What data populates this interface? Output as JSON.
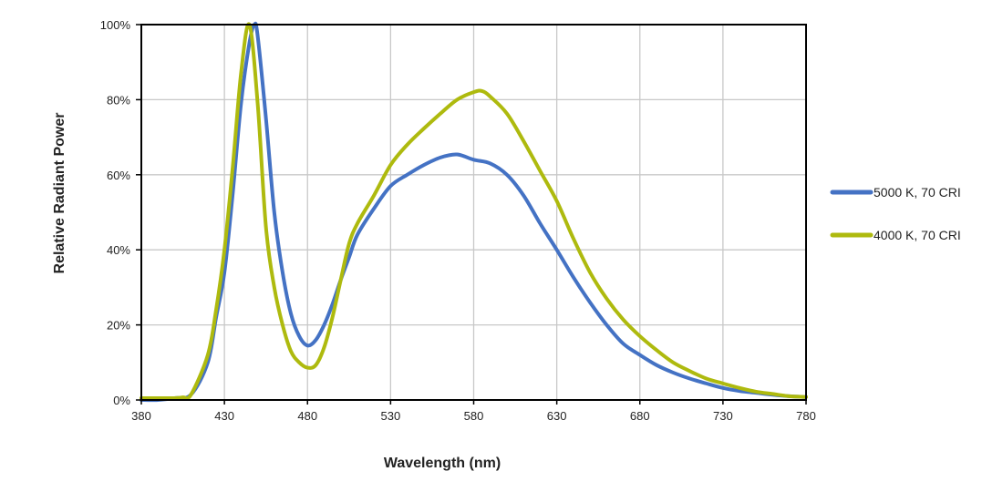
{
  "chart_data": {
    "type": "line",
    "title": "",
    "xlabel": "Wavelength (nm)",
    "ylabel": "Relative Radiant Power",
    "xlim": [
      380,
      780
    ],
    "ylim": [
      0,
      100
    ],
    "x_ticks": [
      "380",
      "430",
      "480",
      "530",
      "580",
      "630",
      "680",
      "730",
      "780"
    ],
    "y_ticks": [
      "0%",
      "20%",
      "40%",
      "60%",
      "80%",
      "100%"
    ],
    "grid": true,
    "legend_position": "right",
    "series": [
      {
        "name": "5000 K, 70 CRI",
        "color": "#4472C4",
        "points": [
          [
            380,
            0
          ],
          [
            390,
            0
          ],
          [
            400,
            0.5
          ],
          [
            410,
            1.5
          ],
          [
            420,
            10
          ],
          [
            425,
            22
          ],
          [
            430,
            34
          ],
          [
            435,
            55
          ],
          [
            440,
            79
          ],
          [
            445,
            95
          ],
          [
            448,
            100
          ],
          [
            450,
            97
          ],
          [
            455,
            75
          ],
          [
            460,
            50
          ],
          [
            465,
            34
          ],
          [
            470,
            23
          ],
          [
            475,
            17
          ],
          [
            480,
            14.5
          ],
          [
            485,
            16
          ],
          [
            490,
            20
          ],
          [
            495,
            25.5
          ],
          [
            500,
            32
          ],
          [
            505,
            38
          ],
          [
            510,
            44
          ],
          [
            520,
            51
          ],
          [
            530,
            57
          ],
          [
            540,
            60
          ],
          [
            550,
            62.6
          ],
          [
            560,
            64.6
          ],
          [
            570,
            65.4
          ],
          [
            580,
            64
          ],
          [
            590,
            63
          ],
          [
            600,
            60
          ],
          [
            610,
            54.5
          ],
          [
            620,
            47
          ],
          [
            630,
            40
          ],
          [
            640,
            32.7
          ],
          [
            650,
            26
          ],
          [
            660,
            20
          ],
          [
            670,
            15
          ],
          [
            680,
            12
          ],
          [
            690,
            9.3
          ],
          [
            700,
            7.3
          ],
          [
            710,
            5.7
          ],
          [
            720,
            4.4
          ],
          [
            730,
            3.2
          ],
          [
            740,
            2.4
          ],
          [
            750,
            1.9
          ],
          [
            760,
            1.4
          ],
          [
            770,
            1
          ],
          [
            780,
            0.8
          ]
        ]
      },
      {
        "name": "4000 K, 70 CRI",
        "color": "#AEBA0E",
        "points": [
          [
            380,
            0.5
          ],
          [
            390,
            0.5
          ],
          [
            400,
            0.5
          ],
          [
            405,
            0.7
          ],
          [
            410,
            1.5
          ],
          [
            420,
            12
          ],
          [
            425,
            24
          ],
          [
            430,
            40
          ],
          [
            435,
            62
          ],
          [
            440,
            87
          ],
          [
            445,
            100
          ],
          [
            450,
            79
          ],
          [
            455,
            46
          ],
          [
            460,
            30
          ],
          [
            465,
            20
          ],
          [
            470,
            13
          ],
          [
            475,
            10
          ],
          [
            480,
            8.6
          ],
          [
            485,
            9.3
          ],
          [
            490,
            14
          ],
          [
            495,
            22
          ],
          [
            500,
            32
          ],
          [
            505,
            41.6
          ],
          [
            510,
            47
          ],
          [
            520,
            54.5
          ],
          [
            530,
            62.6
          ],
          [
            540,
            68
          ],
          [
            550,
            72.3
          ],
          [
            560,
            76.3
          ],
          [
            570,
            80
          ],
          [
            580,
            82
          ],
          [
            585,
            82.3
          ],
          [
            590,
            80.8
          ],
          [
            600,
            76.3
          ],
          [
            610,
            69
          ],
          [
            620,
            61
          ],
          [
            630,
            53
          ],
          [
            640,
            43
          ],
          [
            650,
            34
          ],
          [
            660,
            27
          ],
          [
            670,
            21.4
          ],
          [
            680,
            17
          ],
          [
            690,
            13.3
          ],
          [
            700,
            10
          ],
          [
            710,
            7.7
          ],
          [
            720,
            5.7
          ],
          [
            730,
            4.4
          ],
          [
            740,
            3.2
          ],
          [
            750,
            2.2
          ],
          [
            760,
            1.6
          ],
          [
            770,
            1
          ],
          [
            780,
            0.8
          ]
        ]
      }
    ]
  }
}
